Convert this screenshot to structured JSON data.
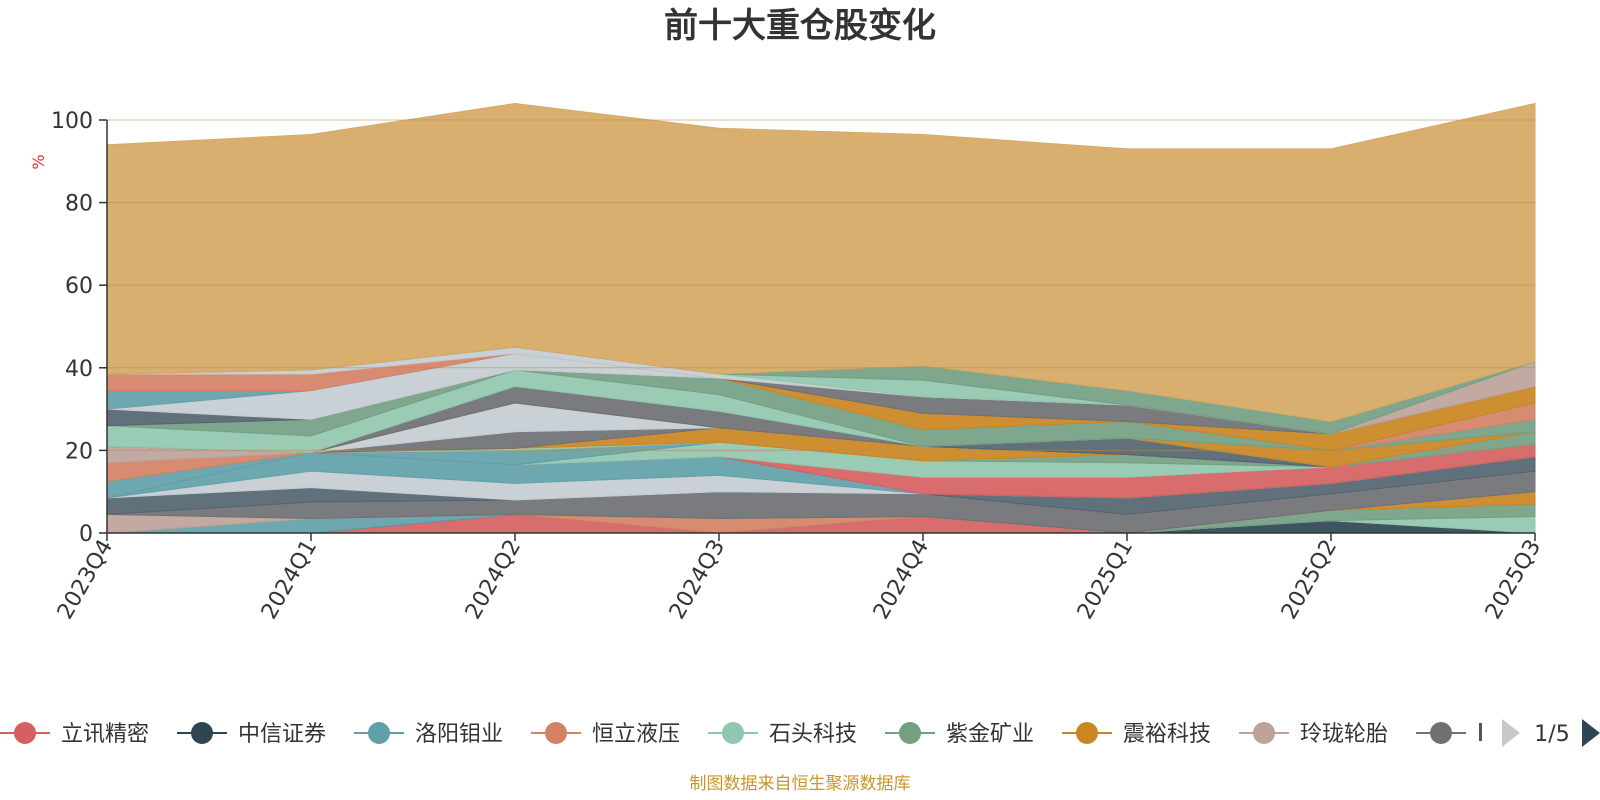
{
  "chart_data": {
    "type": "area",
    "title": "前十大重仓股变化",
    "ylabel": "%",
    "ylim": [
      0,
      100
    ],
    "yticks": [
      0,
      20,
      40,
      60,
      80,
      100
    ],
    "grid": true,
    "categories": [
      "2023Q4",
      "2024Q1",
      "2024Q2",
      "2024Q3",
      "2024Q4",
      "2025Q1",
      "2025Q2",
      "2025Q3"
    ],
    "series": [
      {
        "name": "立讯精密",
        "color": "#d66060",
        "values": [
          0,
          0,
          4.5,
          0,
          4,
          0,
          0,
          0
        ]
      },
      {
        "name": "中信证券",
        "color": "#2f4554",
        "values": [
          0,
          0,
          0,
          0,
          0,
          0,
          3,
          0
        ]
      },
      {
        "name": "洛阳钼业",
        "color": "#61a0a8",
        "values": [
          0,
          3.5,
          0,
          0,
          0,
          0,
          0,
          0
        ]
      },
      {
        "name": "恒立液压",
        "color": "#d48265",
        "values": [
          0,
          0,
          0,
          3.5,
          0,
          0,
          0,
          0
        ]
      },
      {
        "name": "石头科技",
        "color": "#91c7ae",
        "values": [
          0,
          0,
          0,
          0,
          0,
          0,
          0,
          4
        ]
      },
      {
        "name": "紫金矿业",
        "color": "#749f83",
        "values": [
          0,
          0,
          0,
          0,
          0,
          0,
          2.5,
          3
        ]
      },
      {
        "name": "震裕科技",
        "color": "#ca8622",
        "values": [
          0,
          0,
          0,
          0,
          0,
          0,
          0,
          3
        ]
      },
      {
        "name": "玲珑轮胎",
        "color": "#bda29a",
        "values": [
          4.5,
          0,
          0,
          0,
          0,
          0,
          0,
          0
        ]
      },
      {
        "name": "",
        "color": "#6e7074",
        "values": [
          0,
          4,
          3.5,
          6.5,
          5.5,
          4.5,
          4,
          5
        ]
      },
      {
        "name": "",
        "color": "#546570",
        "values": [
          4,
          3.5,
          0,
          0,
          0,
          4,
          2.5,
          3.5
        ]
      },
      {
        "name": "",
        "color": "#c4ccd3",
        "values": [
          0,
          4,
          4,
          4,
          0,
          0,
          0,
          0
        ]
      },
      {
        "name": "",
        "color": "#61a0a8",
        "values": [
          0,
          4.5,
          4.5,
          4.5,
          0,
          0,
          0,
          0
        ]
      },
      {
        "name": "",
        "color": "#d66060",
        "values": [
          0,
          0,
          0,
          0,
          4,
          5,
          4,
          3
        ]
      },
      {
        "name": "",
        "color": "#91c7ae",
        "values": [
          0,
          0,
          0,
          3.5,
          4,
          3.5,
          0,
          0
        ]
      },
      {
        "name": "",
        "color": "#749f83",
        "values": [
          0,
          0,
          0,
          0,
          0,
          2,
          0,
          3
        ]
      },
      {
        "name": "",
        "color": "#61a0a8",
        "values": [
          4,
          0,
          3.5,
          0,
          0,
          0,
          0,
          0
        ]
      },
      {
        "name": "",
        "color": "#d48265",
        "values": [
          4.5,
          0,
          0,
          0,
          0,
          0,
          0,
          0
        ]
      },
      {
        "name": "",
        "color": "#bda29a",
        "values": [
          4,
          0,
          0,
          0,
          0,
          0,
          0,
          0
        ]
      },
      {
        "name": "",
        "color": "#91c7ae",
        "values": [
          0,
          0,
          0.5,
          0,
          0,
          0,
          0,
          0
        ]
      },
      {
        "name": "",
        "color": "#ca8622",
        "values": [
          0,
          0,
          0,
          3.5,
          3.5,
          0,
          0,
          0
        ]
      },
      {
        "name": "",
        "color": "#6e7074",
        "values": [
          0,
          0,
          4,
          0,
          0,
          0,
          0,
          0
        ]
      },
      {
        "name": "",
        "color": "#546570",
        "values": [
          0,
          0,
          0,
          0,
          0,
          4,
          0,
          0
        ]
      },
      {
        "name": "",
        "color": "#c4ccd3",
        "values": [
          0,
          0,
          7,
          0,
          0,
          0,
          0,
          0
        ]
      },
      {
        "name": "",
        "color": "#ca8622",
        "values": [
          0,
          0,
          0,
          0,
          0,
          0,
          4,
          0
        ]
      },
      {
        "name": "",
        "color": "#749f83",
        "values": [
          0,
          0,
          0,
          0,
          0,
          0,
          0,
          3
        ]
      },
      {
        "name": "",
        "color": "#d48265",
        "values": [
          0,
          0,
          0,
          0,
          0,
          0,
          0,
          4
        ]
      },
      {
        "name": "",
        "color": "#6e7074",
        "values": [
          0,
          0,
          4,
          4,
          0,
          0,
          0,
          0
        ]
      },
      {
        "name": "",
        "color": "#91c7ae",
        "values": [
          5,
          4,
          4,
          4,
          0,
          0,
          0,
          0
        ]
      },
      {
        "name": "",
        "color": "#749f83",
        "values": [
          0,
          4,
          0,
          4,
          4,
          4,
          0,
          0
        ]
      },
      {
        "name": "",
        "color": "#ca8622",
        "values": [
          0,
          0,
          0,
          0,
          4,
          0,
          4,
          4
        ]
      },
      {
        "name": "",
        "color": "#6e7074",
        "values": [
          0,
          0,
          0,
          0,
          4,
          4,
          0,
          0
        ]
      },
      {
        "name": "",
        "color": "#bda29a",
        "values": [
          0,
          0,
          0,
          0,
          0,
          0,
          0,
          6
        ]
      },
      {
        "name": "",
        "color": "#546570",
        "values": [
          4,
          0,
          0,
          0,
          0,
          0,
          0,
          0
        ]
      },
      {
        "name": "",
        "color": "#c4ccd3",
        "values": [
          0,
          7,
          4,
          0,
          0,
          0,
          0,
          0
        ]
      },
      {
        "name": "",
        "color": "#61a0a8",
        "values": [
          4.5,
          0,
          0,
          0,
          0,
          0,
          0,
          0
        ]
      },
      {
        "name": "",
        "color": "#d48265",
        "values": [
          4,
          4,
          0,
          0,
          0,
          0,
          0,
          0
        ]
      },
      {
        "name": "",
        "color": "#c4ccd3",
        "values": [
          0,
          1,
          1.5,
          1,
          0,
          0,
          0,
          0
        ]
      },
      {
        "name": "",
        "color": "#91c7ae",
        "values": [
          0,
          0,
          0,
          0,
          4,
          0,
          0,
          0
        ]
      },
      {
        "name": "",
        "color": "#749f83",
        "values": [
          0,
          0,
          0,
          0,
          3.5,
          3.5,
          3,
          0
        ]
      },
      {
        "name": "",
        "color": "#d6a864",
        "values": [
          55.5,
          57,
          59,
          59.5,
          56,
          58.5,
          66,
          62.5
        ]
      }
    ],
    "legend_position": "bottom",
    "legend_page": "1/5",
    "source": "制图数据来自恒生聚源数据库"
  }
}
